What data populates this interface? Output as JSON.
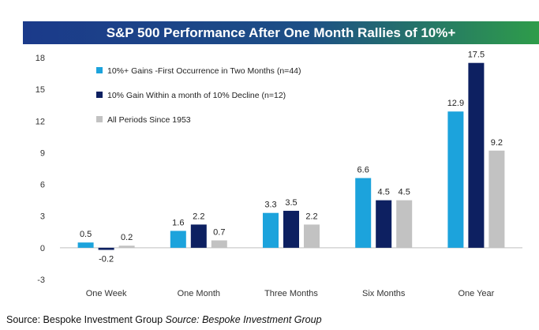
{
  "chart_data": {
    "type": "bar",
    "title": "S&P 500 Performance After One Month Rallies of 10%+",
    "xlabel": "",
    "ylabel": "",
    "ylim": [
      -3,
      18
    ],
    "yticks": [
      18,
      15,
      12,
      9,
      6,
      3,
      0,
      -3
    ],
    "grid": false,
    "legend_position": "top-left",
    "categories": [
      "One Week",
      "One Month",
      "Three Months",
      "Six Months",
      "One Year"
    ],
    "series": [
      {
        "name": "10%+ Gains -First Occurrence in Two Months (n=44)",
        "color": "#1ca3dc",
        "values": [
          0.5,
          1.6,
          3.3,
          6.6,
          12.9
        ]
      },
      {
        "name": "10% Gain Within a month of 10% Decline (n=12)",
        "color": "#0d2061",
        "values": [
          -0.2,
          2.2,
          3.5,
          4.5,
          17.5
        ]
      },
      {
        "name": "All Periods Since 1953",
        "color": "#c2c2c2",
        "values": [
          0.2,
          0.7,
          2.2,
          4.5,
          9.2
        ]
      }
    ]
  },
  "banner": {
    "bg_left": "#1b3a8a",
    "bg_right": "#2e9c4a"
  },
  "source": {
    "plain": "Source: Bespoke Investment Group",
    "italic": "Source: Bespoke Investment Group"
  }
}
